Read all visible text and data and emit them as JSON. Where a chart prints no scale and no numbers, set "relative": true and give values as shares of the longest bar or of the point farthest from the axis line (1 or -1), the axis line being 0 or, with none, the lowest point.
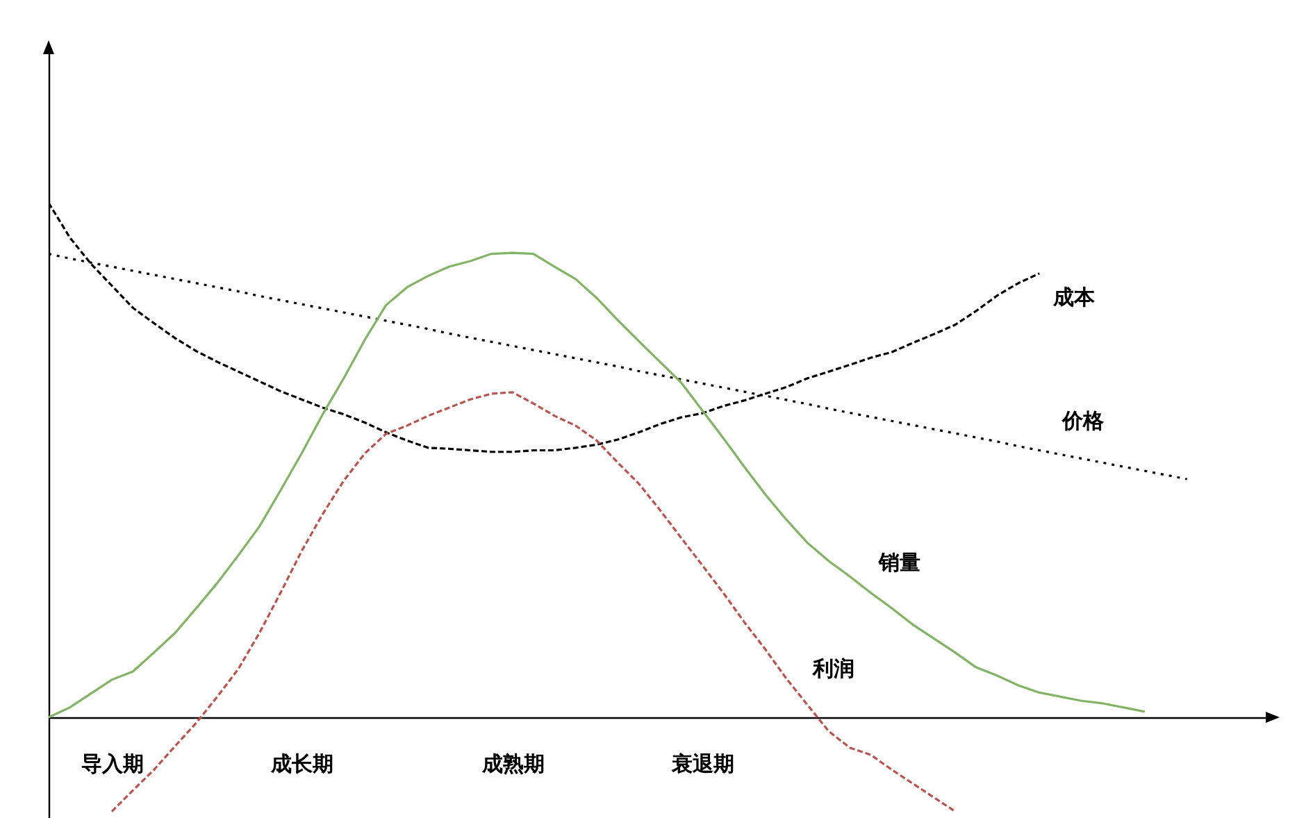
{
  "chart_data": {
    "type": "line",
    "relative": true,
    "categories": [
      null,
      null,
      null,
      "导入期",
      null,
      null,
      null,
      null,
      null,
      null,
      null,
      null,
      "成长期",
      null,
      null,
      null,
      null,
      null,
      null,
      null,
      null,
      null,
      "成熟期",
      null,
      null,
      null,
      null,
      null,
      null,
      null,
      null,
      "衰退期",
      null,
      null,
      null,
      null,
      null,
      null,
      null,
      null,
      null,
      null,
      null,
      null,
      null,
      null,
      null,
      null,
      null,
      null,
      null,
      null,
      null,
      null,
      null,
      null,
      null,
      null,
      null
    ],
    "grid": false,
    "marker": "none",
    "series": [
      {
        "name": "成本",
        "color": "#000000",
        "line_style": "dashed",
        "values": [
          1.0,
          0.933,
          0.882,
          0.839,
          0.796,
          0.766,
          0.737,
          0.712,
          0.691,
          0.672,
          0.653,
          0.634,
          0.618,
          0.602,
          0.589,
          0.573,
          0.554,
          0.538,
          0.524,
          0.522,
          0.519,
          0.516,
          0.516,
          0.519,
          0.519,
          0.524,
          0.53,
          0.54,
          0.554,
          0.57,
          0.583,
          0.591,
          0.605,
          0.616,
          0.629,
          0.642,
          0.659,
          0.672,
          0.685,
          0.699,
          0.71,
          0.728,
          0.745,
          0.763,
          0.79,
          0.82,
          0.844,
          0.863,
          null,
          null,
          null,
          null,
          null,
          null,
          null,
          null,
          null,
          null,
          null
        ]
      },
      {
        "name": "价格",
        "color": "#000000",
        "line_style": "dotted",
        "values": [
          0.901,
          0.892,
          0.884,
          0.876,
          0.868,
          0.86,
          0.852,
          0.844,
          0.836,
          0.828,
          0.819,
          0.811,
          0.803,
          0.795,
          0.787,
          0.779,
          0.771,
          0.763,
          0.755,
          0.746,
          0.738,
          0.73,
          0.722,
          0.714,
          0.706,
          0.698,
          0.69,
          0.682,
          0.673,
          0.665,
          0.657,
          0.649,
          0.641,
          0.633,
          0.625,
          0.617,
          0.609,
          0.6,
          0.592,
          0.584,
          0.576,
          0.568,
          0.56,
          0.552,
          0.544,
          0.536,
          0.527,
          0.519,
          0.511,
          0.503,
          0.495,
          0.487,
          0.479,
          0.471,
          0.463,
          null,
          null,
          null,
          null
        ]
      },
      {
        "name": "销量",
        "color": "#82b366",
        "line_style": "solid",
        "values": [
          0,
          0.019,
          0.046,
          0.073,
          0.089,
          0.126,
          0.164,
          0.212,
          0.261,
          0.315,
          0.371,
          0.441,
          0.513,
          0.589,
          0.659,
          0.734,
          0.801,
          0.836,
          0.858,
          0.876,
          0.887,
          0.901,
          0.903,
          0.901,
          0.876,
          0.852,
          0.815,
          0.772,
          0.731,
          0.691,
          0.651,
          0.597,
          0.543,
          0.487,
          0.433,
          0.384,
          0.339,
          0.304,
          0.274,
          0.242,
          0.212,
          0.18,
          0.153,
          0.126,
          0.097,
          0.081,
          0.062,
          0.048,
          0.04,
          0.032,
          0.027,
          0.019,
          0.011,
          null,
          null,
          null,
          null,
          null,
          null
        ]
      },
      {
        "name": "利润",
        "color": "#b85450",
        "line_style": "dashed",
        "values": [
          null,
          null,
          null,
          -0.183,
          -0.142,
          -0.102,
          -0.056,
          -0.011,
          0.04,
          0.094,
          0.164,
          0.242,
          0.323,
          0.395,
          0.46,
          0.513,
          0.551,
          0.567,
          0.586,
          0.602,
          0.618,
          0.629,
          0.632,
          0.61,
          0.586,
          0.567,
          0.538,
          0.495,
          0.454,
          0.403,
          0.349,
          0.296,
          0.242,
          0.185,
          0.132,
          0.075,
          0.024,
          -0.027,
          -0.059,
          -0.073,
          -0.102,
          -0.129,
          -0.156,
          -0.183,
          null,
          null,
          null,
          null,
          null,
          null,
          null,
          null,
          null,
          null,
          null,
          null,
          null,
          null,
          null
        ]
      }
    ]
  }
}
